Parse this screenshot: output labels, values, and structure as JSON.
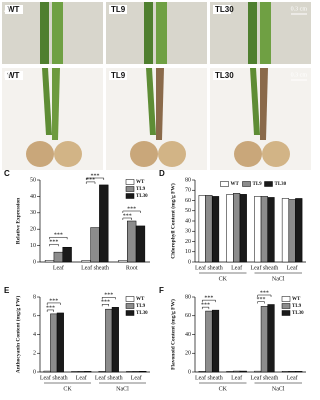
{
  "photo_panels": [
    {
      "panel": "A",
      "labels": [
        "WT",
        "TL9",
        "TL30"
      ],
      "scale": "0.3 cm"
    },
    {
      "panel": "B",
      "labels": [
        "WT",
        "TL9",
        "TL30"
      ],
      "scale": "0.3 cm"
    }
  ],
  "chart_data": [
    {
      "type": "bar",
      "panel": "C",
      "y_label": "Relative Expression",
      "categories": [
        "Leaf",
        "Leaf sheath",
        "Root"
      ],
      "series": [
        {
          "name": "WT",
          "color": "#ffffff",
          "values": [
            1,
            1,
            1
          ]
        },
        {
          "name": "TL9",
          "color": "#8c8c8c",
          "values": [
            6,
            21,
            25
          ]
        },
        {
          "name": "TL30",
          "color": "#1a1a1a",
          "values": [
            9,
            47,
            22
          ]
        }
      ],
      "ylim": [
        0,
        50
      ],
      "yticks": [
        0,
        10,
        20,
        30,
        40,
        50
      ],
      "annotations": [
        {
          "text": "***",
          "category": 0,
          "series": [
            0,
            1
          ]
        },
        {
          "text": "***",
          "category": 0,
          "series": [
            0,
            2
          ]
        },
        {
          "text": "***",
          "category": 1,
          "series": [
            0,
            1
          ]
        },
        {
          "text": "***",
          "category": 1,
          "series": [
            0,
            2
          ]
        },
        {
          "text": "***",
          "category": 2,
          "series": [
            0,
            1
          ]
        },
        {
          "text": "***",
          "category": 2,
          "series": [
            0,
            2
          ]
        }
      ],
      "legend": "upper right"
    },
    {
      "type": "bar",
      "panel": "D",
      "y_label": "Chlorophyll Content (mg/g FW)",
      "categories": [
        "Leaf sheath",
        "Leaf",
        "Leaf sheath",
        "Leaf"
      ],
      "groups": [
        "CK",
        "NaCl"
      ],
      "series": [
        {
          "name": "WT",
          "color": "#ffffff",
          "values": [
            65,
            66,
            64,
            62
          ]
        },
        {
          "name": "TL9",
          "color": "#8c8c8c",
          "values": [
            65,
            67,
            64,
            61
          ]
        },
        {
          "name": "TL30",
          "color": "#1a1a1a",
          "values": [
            64,
            66,
            63,
            62
          ]
        }
      ],
      "ylim": [
        0,
        80
      ],
      "yticks": [
        0,
        10,
        20,
        30,
        40,
        50,
        60,
        70,
        80
      ],
      "annotations": [],
      "legend": "upper center"
    },
    {
      "type": "bar",
      "panel": "E",
      "y_label": "Anthocyanin Content (mg/g FW)",
      "categories": [
        "Leaf sheath",
        "Leaf",
        "Leaf sheath",
        "Leaf"
      ],
      "groups": [
        "CK",
        "NaCl"
      ],
      "series": [
        {
          "name": "WT",
          "color": "#ffffff",
          "values": [
            0.1,
            0.05,
            0.08,
            0.06
          ]
        },
        {
          "name": "TL9",
          "color": "#8c8c8c",
          "values": [
            6.2,
            0.06,
            6.7,
            0.07
          ]
        },
        {
          "name": "TL30",
          "color": "#1a1a1a",
          "values": [
            6.3,
            0.07,
            6.9,
            0.08
          ]
        }
      ],
      "ylim": [
        0,
        8
      ],
      "yticks": [
        0,
        2,
        4,
        6,
        8
      ],
      "annotations": [
        {
          "text": "***",
          "category": 0,
          "series": [
            0,
            1
          ]
        },
        {
          "text": "***",
          "category": 0,
          "series": [
            0,
            2
          ]
        },
        {
          "text": "***",
          "category": 2,
          "series": [
            0,
            1
          ]
        },
        {
          "text": "***",
          "category": 2,
          "series": [
            0,
            2
          ]
        }
      ],
      "legend": "upper right"
    },
    {
      "type": "bar",
      "panel": "F",
      "y_label": "Flavonoid Content (mg/g FW)",
      "categories": [
        "Leaf sheath",
        "Leaf",
        "Leaf sheath",
        "Leaf"
      ],
      "groups": [
        "CK",
        "NaCl"
      ],
      "series": [
        {
          "name": "WT",
          "color": "#ffffff",
          "values": [
            0.8,
            0.7,
            0.9,
            0.8
          ]
        },
        {
          "name": "TL9",
          "color": "#8c8c8c",
          "values": [
            65,
            1,
            70,
            0.8
          ]
        },
        {
          "name": "TL30",
          "color": "#1a1a1a",
          "values": [
            66,
            1,
            72,
            0.7
          ]
        }
      ],
      "ylim": [
        0,
        80
      ],
      "yticks": [
        0,
        20,
        40,
        60,
        80
      ],
      "annotations": [
        {
          "text": "***",
          "category": 0,
          "series": [
            0,
            1
          ]
        },
        {
          "text": "***",
          "category": 0,
          "series": [
            0,
            2
          ]
        },
        {
          "text": "***",
          "category": 2,
          "series": [
            0,
            1
          ]
        },
        {
          "text": "***",
          "category": 2,
          "series": [
            0,
            2
          ]
        }
      ],
      "legend": "upper right"
    }
  ]
}
